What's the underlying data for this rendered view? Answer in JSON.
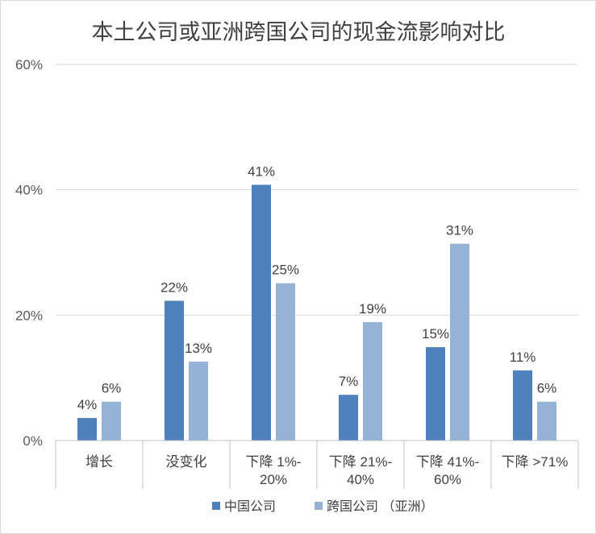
{
  "chart_data": {
    "type": "bar",
    "title": "本土公司或亚洲跨国公司的现金流影响对比",
    "xlabel": "",
    "ylabel": "",
    "ylim": [
      0,
      0.6
    ],
    "yticks": [
      0,
      0.2,
      0.4,
      0.6
    ],
    "ytick_labels": [
      "0%",
      "20%",
      "40%",
      "60%"
    ],
    "categories": [
      [
        "增长"
      ],
      [
        "没变化"
      ],
      [
        "下降 1%-",
        "20%"
      ],
      [
        "下降 21%-",
        "40%"
      ],
      [
        "下降 41%-",
        "60%"
      ],
      [
        "下降 >71%"
      ]
    ],
    "series": [
      {
        "name": "中国公司",
        "color": "#4f81bd",
        "values": [
          0.036,
          0.223,
          0.408,
          0.073,
          0.149,
          0.112
        ],
        "labels": [
          "4%",
          "22%",
          "41%",
          "7%",
          "15%",
          "11%"
        ]
      },
      {
        "name": "跨国公司 （亚洲）",
        "color": "#95b3d7",
        "values": [
          0.062,
          0.126,
          0.251,
          0.189,
          0.314,
          0.062
        ],
        "labels": [
          "6%",
          "13%",
          "25%",
          "19%",
          "31%",
          "6%"
        ]
      }
    ],
    "grid": true,
    "gridline_color": "#d9d9d9",
    "legend": "bottom"
  }
}
